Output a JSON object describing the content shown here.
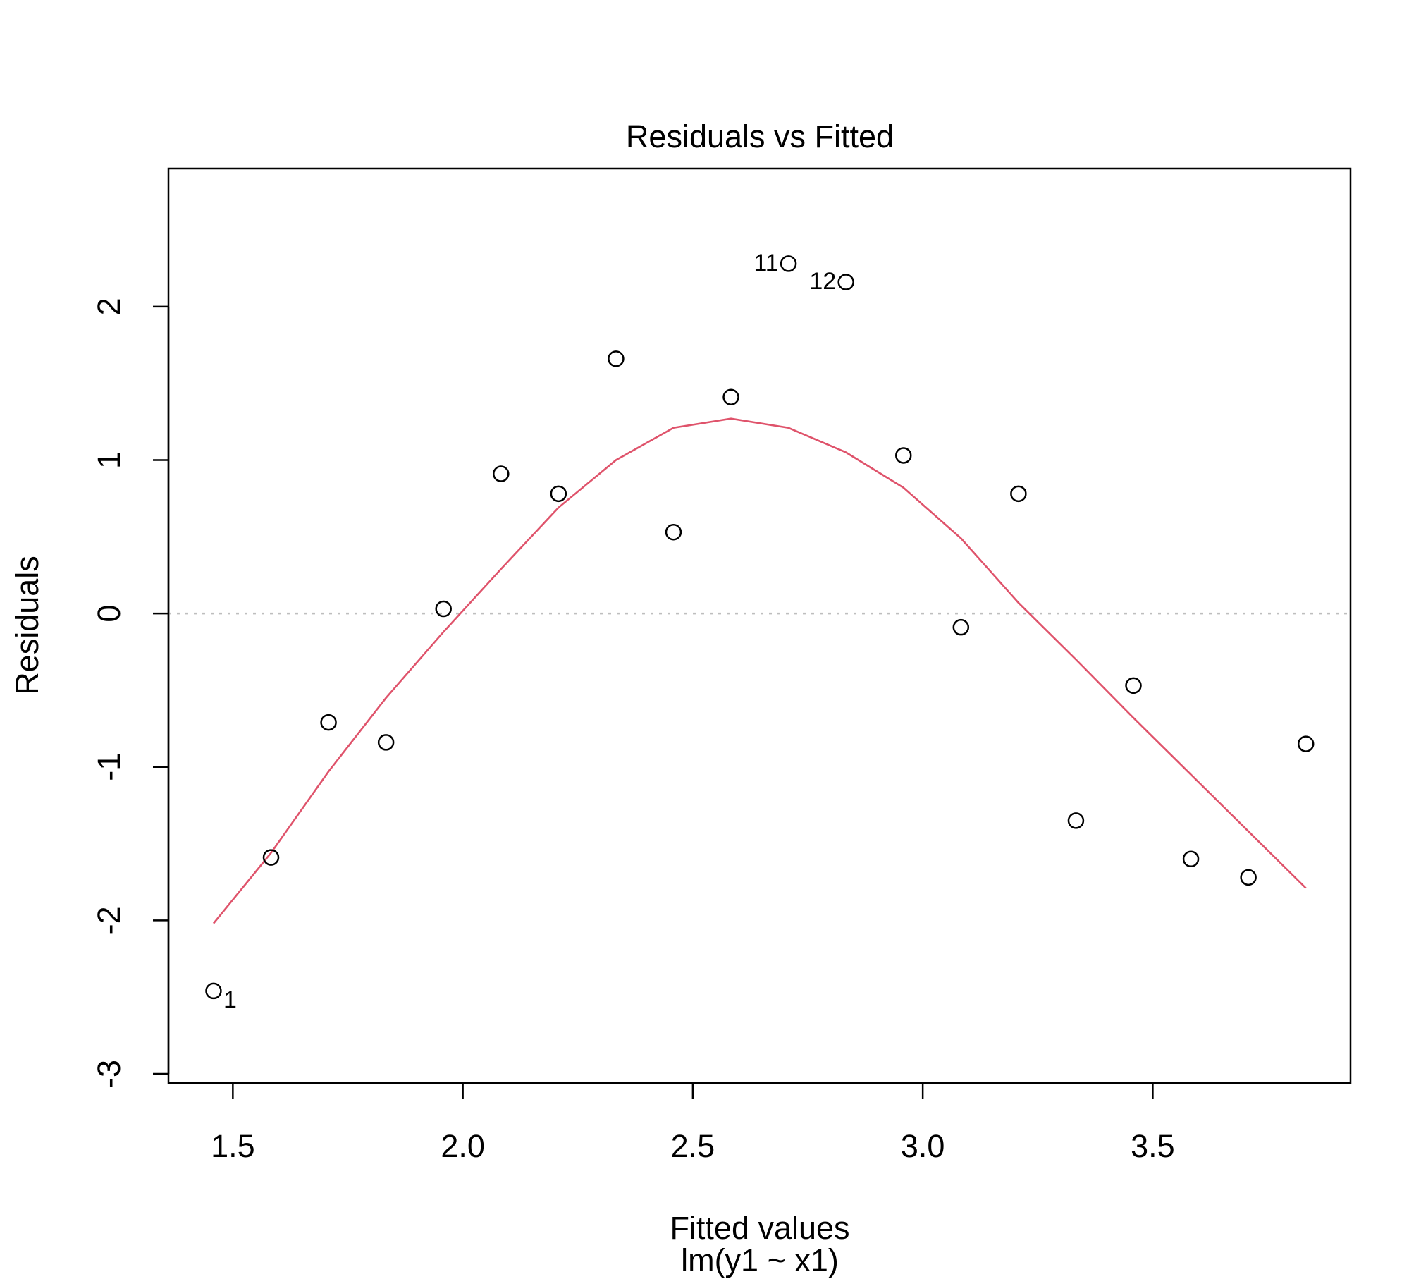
{
  "chart_data": {
    "type": "scatter",
    "title": "Residuals vs Fitted",
    "xlabel": "Fitted values",
    "subtitle": "lm(y1 ~ x1)",
    "ylabel": "Residuals",
    "xlim": [
      1.36,
      3.93
    ],
    "ylim": [
      -3.06,
      2.9
    ],
    "x_ticks": [
      {
        "value": 1.5,
        "label": "1.5"
      },
      {
        "value": 2.0,
        "label": "2.0"
      },
      {
        "value": 2.5,
        "label": "2.5"
      },
      {
        "value": 3.0,
        "label": "3.0"
      },
      {
        "value": 3.5,
        "label": "3.5"
      }
    ],
    "y_ticks": [
      {
        "value": -3,
        "label": "-3"
      },
      {
        "value": -2,
        "label": "-2"
      },
      {
        "value": -1,
        "label": "-1"
      },
      {
        "value": 0,
        "label": "0"
      },
      {
        "value": 1,
        "label": "1"
      },
      {
        "value": 2,
        "label": "2"
      }
    ],
    "points": [
      {
        "x": 1.458,
        "y": -2.46,
        "label": "1"
      },
      {
        "x": 1.583,
        "y": -1.59
      },
      {
        "x": 1.708,
        "y": -0.71
      },
      {
        "x": 1.833,
        "y": -0.84
      },
      {
        "x": 1.958,
        "y": 0.03
      },
      {
        "x": 2.083,
        "y": 0.91
      },
      {
        "x": 2.208,
        "y": 0.78
      },
      {
        "x": 2.333,
        "y": 1.66
      },
      {
        "x": 2.458,
        "y": 0.53
      },
      {
        "x": 2.583,
        "y": 1.41
      },
      {
        "x": 2.708,
        "y": 2.28,
        "label": "11"
      },
      {
        "x": 2.833,
        "y": 2.16,
        "label": "12"
      },
      {
        "x": 2.958,
        "y": 1.03
      },
      {
        "x": 3.083,
        "y": -0.09
      },
      {
        "x": 3.208,
        "y": 0.78
      },
      {
        "x": 3.333,
        "y": -1.35
      },
      {
        "x": 3.458,
        "y": -0.47
      },
      {
        "x": 3.583,
        "y": -1.6
      },
      {
        "x": 3.708,
        "y": -1.72
      },
      {
        "x": 3.833,
        "y": -0.85
      }
    ],
    "smooth_line": {
      "color": "#DF536B",
      "x": [
        1.458,
        1.583,
        1.708,
        1.833,
        1.958,
        2.083,
        2.208,
        2.333,
        2.458,
        2.583,
        2.708,
        2.833,
        2.958,
        3.083,
        3.208,
        3.333,
        3.458,
        3.583,
        3.708,
        3.833
      ],
      "y": [
        -2.02,
        -1.56,
        -1.03,
        -0.55,
        -0.12,
        0.29,
        0.69,
        1.0,
        1.21,
        1.27,
        1.21,
        1.05,
        0.82,
        0.49,
        0.07,
        -0.3,
        -0.68,
        -1.05,
        -1.42,
        -1.79
      ]
    },
    "reference_line": {
      "y": 0,
      "color": "#BEBEBE",
      "style": "dotted"
    },
    "grid": false,
    "legend": "none"
  }
}
